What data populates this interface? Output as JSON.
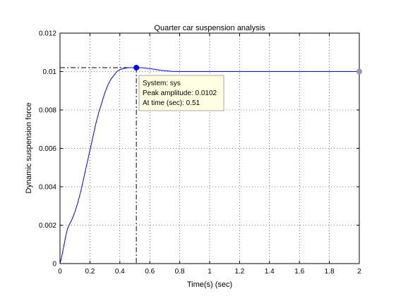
{
  "chart_data": {
    "type": "line",
    "title": "Quarter car suspension analysis",
    "xlabel": "Time(s) (sec)",
    "ylabel": "Dynamic suspension force",
    "xlim": [
      0,
      2
    ],
    "ylim": [
      0,
      0.012
    ],
    "x_ticks": [
      "0",
      "0.2",
      "0.4",
      "0.6",
      "0.8",
      "1",
      "1.2",
      "1.4",
      "1.6",
      "1.8",
      "2"
    ],
    "y_ticks": [
      "0",
      "0.002",
      "0.004",
      "0.006",
      "0.008",
      "0.01",
      "0.012"
    ],
    "grid": true,
    "line_color": "#0000ff",
    "series": [
      {
        "x": [
          0,
          0.01,
          0.02,
          0.03,
          0.04,
          0.05,
          0.06,
          0.08,
          0.1,
          0.12,
          0.14,
          0.16,
          0.18,
          0.2,
          0.22,
          0.24,
          0.26,
          0.28,
          0.3,
          0.32,
          0.34,
          0.36,
          0.38,
          0.4,
          0.42,
          0.44,
          0.46,
          0.48,
          0.51,
          0.54,
          0.57,
          0.6,
          0.63,
          0.66,
          0.7,
          0.75,
          0.8,
          0.9,
          1.0,
          1.2,
          1.4,
          1.6,
          1.8,
          2.0
        ],
        "y": [
          0,
          0.0003,
          0.0007,
          0.0011,
          0.0015,
          0.0018,
          0.002,
          0.0023,
          0.0027,
          0.0032,
          0.0038,
          0.0045,
          0.0052,
          0.0059,
          0.0066,
          0.0073,
          0.0079,
          0.0084,
          0.0089,
          0.0093,
          0.0096,
          0.0098,
          0.01,
          0.0101,
          0.01015,
          0.01018,
          0.0102,
          0.0102,
          0.0102,
          0.0102,
          0.01018,
          0.01015,
          0.01012,
          0.01008,
          0.01004,
          0.01001,
          0.01,
          0.01,
          0.01,
          0.01,
          0.01,
          0.01,
          0.01,
          0.01
        ]
      }
    ],
    "peak": {
      "x": 0.51,
      "y": 0.0102
    },
    "final": {
      "x": 2,
      "y": 0.01
    },
    "datatip": {
      "line1": "System: sys",
      "line2": "Peak amplitude: 0.0102",
      "line3": "At time (sec): 0.51"
    }
  }
}
